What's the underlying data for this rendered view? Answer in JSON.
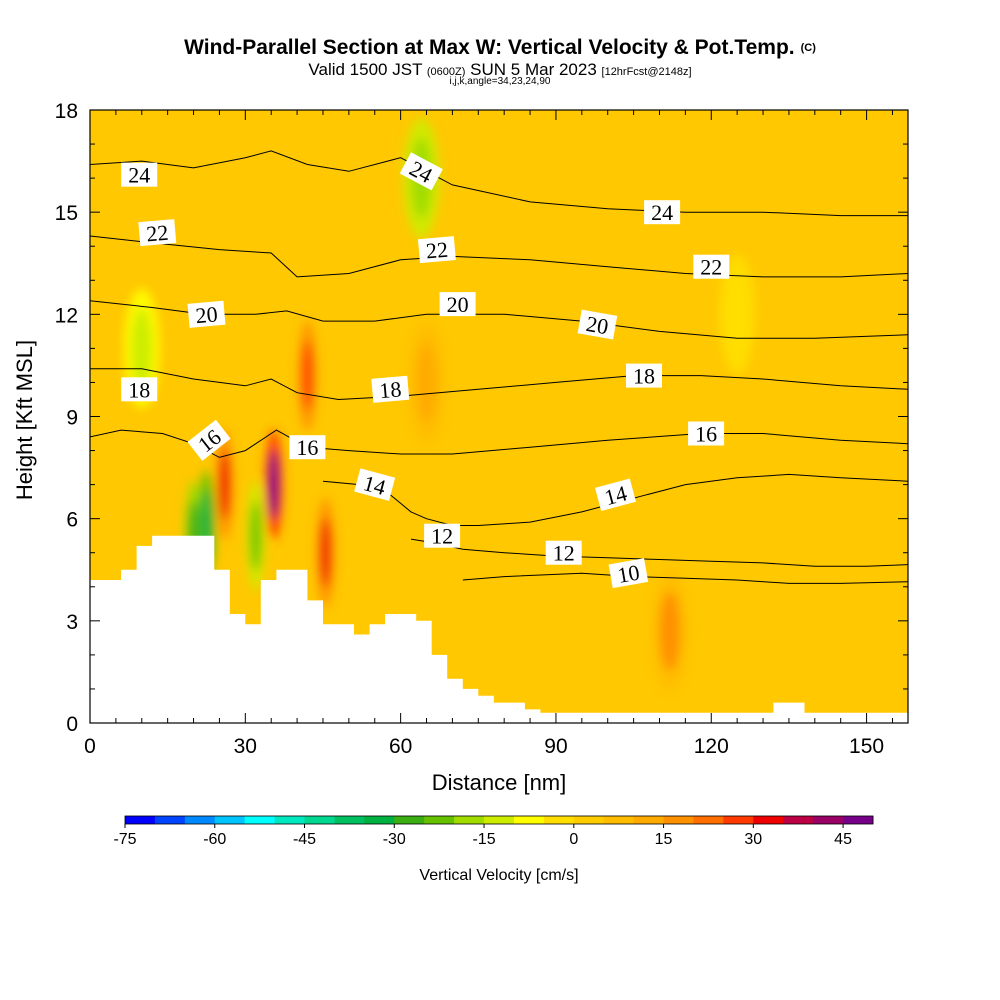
{
  "header": {
    "title": "Wind-Parallel Section at Max W: Vertical Velocity & Pot.Temp.",
    "copyright": "(C)",
    "valid_prefix": "Valid 1500 JST",
    "valid_utc": "(0600Z)",
    "valid_date": "SUN 5 Mar 2023",
    "forecast": "[12hrFcst@2148z]",
    "indices": "i,j,k,angle=34,23,24,90"
  },
  "chart_data": {
    "type": "heatmap",
    "xlabel": "Distance [nm]",
    "ylabel": "Height [Kft MSL]",
    "xlim": [
      0,
      158
    ],
    "ylim": [
      0,
      18
    ],
    "x_ticks": [
      0,
      30,
      60,
      90,
      120,
      150
    ],
    "y_ticks": [
      0,
      3,
      6,
      9,
      12,
      15,
      18
    ],
    "grid": false,
    "colorbar": {
      "label": "Vertical Velocity [cm/s]",
      "range": [
        -75,
        50
      ],
      "step": 5,
      "ticks": [
        -75,
        -60,
        -45,
        -30,
        -15,
        0,
        15,
        30,
        45
      ],
      "colors": [
        "#0000ff",
        "#0044ff",
        "#0088ff",
        "#00c4ff",
        "#00ffff",
        "#00e8c0",
        "#00d890",
        "#00c060",
        "#00b040",
        "#3aae12",
        "#66c200",
        "#a0dc00",
        "#ccec00",
        "#ffff00",
        "#ffde00",
        "#ffcc00",
        "#ffbc00",
        "#ffaa00",
        "#ff9000",
        "#ff6e00",
        "#ff3a00",
        "#ee0000",
        "#bb0044",
        "#990066",
        "#770088"
      ]
    },
    "velocity_cells": [
      {
        "x": 10,
        "y": 11,
        "w": -15
      },
      {
        "x": 20,
        "y": 5.5,
        "w": -30
      },
      {
        "x": 22.5,
        "y": 5.8,
        "w": -35
      },
      {
        "x": 26,
        "y": 7,
        "w": 30
      },
      {
        "x": 32,
        "y": 5.5,
        "w": -25
      },
      {
        "x": 35.5,
        "y": 7,
        "w": 45
      },
      {
        "x": 42,
        "y": 10.2,
        "w": 25
      },
      {
        "x": 45.5,
        "y": 5,
        "w": 30
      },
      {
        "x": 64,
        "y": 16,
        "w": -18
      },
      {
        "x": 65,
        "y": 10,
        "w": 10
      },
      {
        "x": 112,
        "y": 2.7,
        "w": 15
      },
      {
        "x": 125,
        "y": 12,
        "w": -3
      }
    ],
    "isentropes": [
      {
        "theta": 10,
        "x": [
          72,
          80,
          95,
          105,
          115,
          125,
          135,
          145,
          158
        ],
        "y": [
          4.2,
          4.3,
          4.4,
          4.3,
          4.25,
          4.2,
          4.1,
          4.1,
          4.15
        ]
      },
      {
        "theta": 12,
        "x": [
          62,
          66,
          72,
          80,
          90,
          100,
          110,
          120,
          130,
          140,
          150,
          158
        ],
        "y": [
          5.4,
          5.3,
          5.1,
          5.0,
          4.9,
          4.85,
          4.8,
          4.75,
          4.7,
          4.6,
          4.6,
          4.65
        ]
      },
      {
        "theta": 14,
        "x": [
          45,
          52,
          58,
          62,
          65,
          70,
          75,
          85,
          95,
          105,
          115,
          125,
          135,
          145,
          158
        ],
        "y": [
          7.1,
          7.0,
          6.7,
          6.2,
          6.0,
          5.8,
          5.8,
          5.9,
          6.2,
          6.6,
          7.0,
          7.2,
          7.3,
          7.2,
          7.1
        ]
      },
      {
        "theta": 16,
        "x": [
          0,
          6,
          14,
          20,
          25,
          30,
          36,
          42,
          50,
          60,
          70,
          85,
          100,
          118,
          130,
          145,
          158
        ],
        "y": [
          8.4,
          8.6,
          8.5,
          8.2,
          7.8,
          8.0,
          8.6,
          8.1,
          8.0,
          7.9,
          7.9,
          8.1,
          8.3,
          8.5,
          8.5,
          8.3,
          8.2
        ]
      },
      {
        "theta": 18,
        "x": [
          0,
          10,
          20,
          30,
          35,
          40,
          48,
          60,
          75,
          90,
          105,
          118,
          130,
          145,
          158
        ],
        "y": [
          10.4,
          10.4,
          10.1,
          9.9,
          10.1,
          9.7,
          9.5,
          9.6,
          9.8,
          10.0,
          10.2,
          10.2,
          10.1,
          9.9,
          9.8
        ]
      },
      {
        "theta": 20,
        "x": [
          0,
          12,
          22,
          32,
          38,
          45,
          55,
          65,
          80,
          95,
          110,
          125,
          140,
          158
        ],
        "y": [
          12.4,
          12.2,
          12.0,
          12.0,
          12.1,
          11.8,
          11.8,
          12.0,
          12.0,
          11.8,
          11.5,
          11.3,
          11.3,
          11.4
        ]
      },
      {
        "theta": 22,
        "x": [
          0,
          12,
          25,
          35,
          40,
          50,
          60,
          70,
          85,
          100,
          115,
          130,
          145,
          158
        ],
        "y": [
          14.3,
          14.1,
          13.9,
          13.8,
          13.1,
          13.2,
          13.6,
          13.7,
          13.6,
          13.4,
          13.2,
          13.1,
          13.1,
          13.2
        ]
      },
      {
        "theta": 24,
        "x": [
          0,
          10,
          20,
          30,
          35,
          42,
          50,
          60,
          70,
          85,
          100,
          115,
          130,
          145,
          158
        ],
        "y": [
          16.4,
          16.5,
          16.3,
          16.6,
          16.8,
          16.4,
          16.2,
          16.6,
          15.8,
          15.3,
          15.1,
          15.0,
          15.0,
          14.9,
          14.9
        ]
      }
    ],
    "contour_labels": [
      {
        "text": "24",
        "x": 9.5,
        "y": 16.1,
        "angle": 0
      },
      {
        "text": "24",
        "x": 64,
        "y": 16.2,
        "angle": 28
      },
      {
        "text": "24",
        "x": 110.5,
        "y": 15.0,
        "angle": 0
      },
      {
        "text": "22",
        "x": 13,
        "y": 14.4,
        "angle": -5
      },
      {
        "text": "22",
        "x": 67,
        "y": 13.9,
        "angle": -5
      },
      {
        "text": "22",
        "x": 120,
        "y": 13.4,
        "angle": 0
      },
      {
        "text": "20",
        "x": 22.5,
        "y": 12.0,
        "angle": -5
      },
      {
        "text": "20",
        "x": 71,
        "y": 12.3,
        "angle": 0
      },
      {
        "text": "20",
        "x": 98,
        "y": 11.7,
        "angle": 10
      },
      {
        "text": "18",
        "x": 9.5,
        "y": 9.8,
        "angle": 0
      },
      {
        "text": "18",
        "x": 58,
        "y": 9.8,
        "angle": -5
      },
      {
        "text": "18",
        "x": 107,
        "y": 10.2,
        "angle": 0
      },
      {
        "text": "16",
        "x": 23,
        "y": 8.3,
        "angle": -38
      },
      {
        "text": "16",
        "x": 42,
        "y": 8.1,
        "angle": 0
      },
      {
        "text": "16",
        "x": 119,
        "y": 8.5,
        "angle": 0
      },
      {
        "text": "14",
        "x": 55,
        "y": 7.0,
        "angle": 15
      },
      {
        "text": "14",
        "x": 101.5,
        "y": 6.7,
        "angle": -15
      },
      {
        "text": "12",
        "x": 68,
        "y": 5.5,
        "angle": 0
      },
      {
        "text": "12",
        "x": 91.5,
        "y": 5.0,
        "angle": 0
      },
      {
        "text": "10",
        "x": 104,
        "y": 4.4,
        "angle": -10
      }
    ],
    "terrain": {
      "x": [
        0,
        3,
        6,
        9,
        12,
        15,
        18,
        21,
        24,
        27,
        30,
        33,
        36,
        39,
        42,
        45,
        48,
        51,
        54,
        57,
        60,
        63,
        66,
        69,
        72,
        75,
        78,
        81,
        84,
        87,
        90,
        93,
        96,
        99,
        102,
        105,
        108,
        111,
        114,
        117,
        120,
        123,
        126,
        129,
        132,
        135,
        138,
        141,
        144,
        147,
        150,
        153,
        156,
        158
      ],
      "y": [
        4.2,
        4.2,
        4.5,
        5.2,
        5.5,
        5.5,
        5.5,
        5.5,
        4.5,
        3.2,
        2.9,
        4.2,
        4.5,
        4.5,
        3.6,
        2.9,
        2.9,
        2.6,
        2.9,
        3.2,
        3.2,
        3.0,
        2.0,
        1.3,
        1.0,
        0.8,
        0.6,
        0.6,
        0.4,
        0.3,
        0.3,
        0.3,
        0.3,
        0.3,
        0.3,
        0.3,
        0.3,
        0.3,
        0.3,
        0.3,
        0.3,
        0.3,
        0.3,
        0.3,
        0.6,
        0.6,
        0.3,
        0.3,
        0.3,
        0.3,
        0.3,
        0.3,
        0.3,
        0.3
      ]
    }
  }
}
